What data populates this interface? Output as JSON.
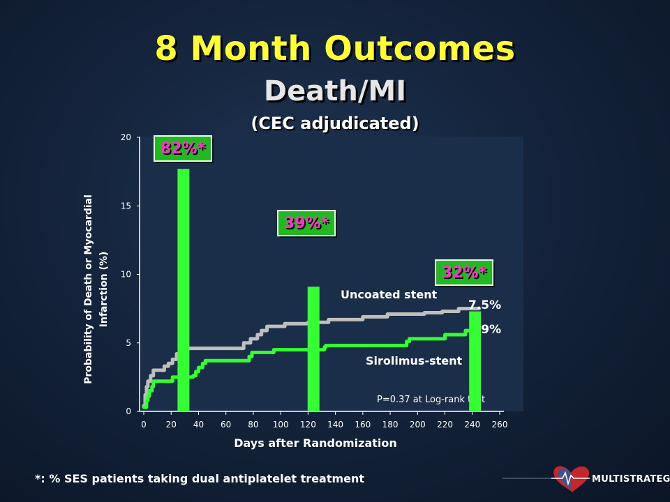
{
  "slide": {
    "title": "8 Month Outcomes",
    "subtitle": "Death/MI",
    "subsubtitle": "(CEC adjudicated)",
    "footnote": "*: % SES patients taking dual antiplatelet treatment",
    "logo_text_a": "MULTI",
    "logo_text_b": "STRATEGY"
  },
  "colors": {
    "title": "#ffff33",
    "uncoated": "#bfbfbf",
    "sirolimus": "#33ff33",
    "bar": "#33ff33",
    "badge_fill": "#22b822",
    "badge_text": "#ff33cc",
    "plot_bg": "#1a2e4a"
  },
  "chart_data": {
    "type": "line",
    "xlabel": "Days after Randomization",
    "ylabel": "Probability of Death or Myocardial Infarction (%)",
    "xlim": [
      0,
      260
    ],
    "ylim": [
      0,
      20
    ],
    "x_ticks": [
      0,
      20,
      40,
      60,
      80,
      100,
      120,
      140,
      160,
      180,
      200,
      220,
      240,
      260
    ],
    "y_ticks": [
      0,
      5,
      10,
      15,
      20
    ],
    "grid": false,
    "series": [
      {
        "name": "Uncoated stent",
        "end_label": "7.5%",
        "points": [
          [
            0,
            0.4
          ],
          [
            1,
            1.2
          ],
          [
            2,
            1.8
          ],
          [
            3,
            2.2
          ],
          [
            5,
            2.6
          ],
          [
            7,
            3.0
          ],
          [
            13,
            3.0
          ],
          [
            15,
            3.3
          ],
          [
            18,
            3.5
          ],
          [
            21,
            3.8
          ],
          [
            24,
            4.2
          ],
          [
            26,
            4.6
          ],
          [
            70,
            4.6
          ],
          [
            73,
            5.0
          ],
          [
            78,
            5.3
          ],
          [
            83,
            5.6
          ],
          [
            86,
            5.9
          ],
          [
            90,
            6.2
          ],
          [
            103,
            6.4
          ],
          [
            120,
            6.5
          ],
          [
            135,
            6.7
          ],
          [
            160,
            6.9
          ],
          [
            178,
            7.1
          ],
          [
            205,
            7.2
          ],
          [
            218,
            7.3
          ],
          [
            230,
            7.5
          ],
          [
            245,
            7.5
          ]
        ]
      },
      {
        "name": "Sirolimus-stent",
        "end_label": "5.9%",
        "points": [
          [
            0,
            0.3
          ],
          [
            2,
            0.8
          ],
          [
            3,
            1.1
          ],
          [
            4,
            1.5
          ],
          [
            6,
            1.8
          ],
          [
            7,
            2.2
          ],
          [
            20,
            2.2
          ],
          [
            21,
            2.5
          ],
          [
            25,
            2.5
          ],
          [
            36,
            2.6
          ],
          [
            38,
            2.9
          ],
          [
            40,
            3.2
          ],
          [
            43,
            3.5
          ],
          [
            45,
            3.7
          ],
          [
            75,
            3.7
          ],
          [
            77,
            4.0
          ],
          [
            79,
            4.3
          ],
          [
            92,
            4.3
          ],
          [
            95,
            4.5
          ],
          [
            130,
            4.5
          ],
          [
            132,
            4.7
          ],
          [
            133,
            4.8
          ],
          [
            190,
            4.8
          ],
          [
            192,
            5.1
          ],
          [
            194,
            5.3
          ],
          [
            215,
            5.3
          ],
          [
            220,
            5.6
          ],
          [
            233,
            5.6
          ],
          [
            235,
            5.9
          ],
          [
            245,
            5.9
          ]
        ]
      }
    ],
    "bars": [
      {
        "x": 29,
        "value": 17.7,
        "badge": "82%*"
      },
      {
        "x": 124,
        "value": 9.1,
        "badge": "39%*"
      },
      {
        "x": 242,
        "value": 7.3,
        "badge": "32%*"
      }
    ],
    "annotations": {
      "series_label_1": "Uncoated stent",
      "series_label_2": "Sirolimus-stent",
      "pvalue": "P=0.37 at Log-rank test"
    }
  }
}
